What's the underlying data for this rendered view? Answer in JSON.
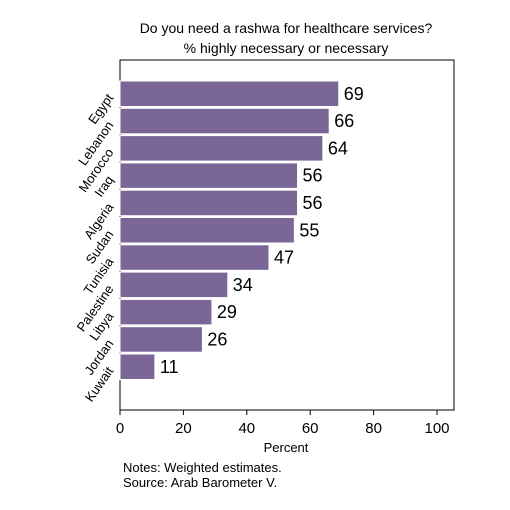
{
  "chart_data": {
    "type": "bar",
    "orientation": "horizontal",
    "title": "Do you need a rashwa for healthcare services?",
    "subtitle": "% highly necessary or necessary",
    "xlabel": "Percent",
    "ylabel": "",
    "categories": [
      "Egypt",
      "Lebanon",
      "Morocco",
      "Iraq",
      "Algeria",
      "Sudan",
      "Tunisia",
      "Palestine",
      "Libya",
      "Jordan",
      "Kuwait"
    ],
    "values": [
      69,
      66,
      64,
      56,
      56,
      55,
      47,
      34,
      29,
      26,
      11
    ],
    "value_labels": [
      "69",
      "66",
      "64",
      "56",
      "56",
      "55",
      "47",
      "34",
      "29",
      "26",
      "11"
    ],
    "xlim": [
      0,
      100
    ],
    "xticks": [
      0,
      20,
      40,
      60,
      80,
      100
    ],
    "xtick_labels": [
      "0",
      "20",
      "40",
      "60",
      "80",
      "100"
    ],
    "grid": false,
    "bar_color": "#7a6797",
    "bar_edge_color": "#ffffff"
  },
  "notes": {
    "line1": "Notes: Weighted estimates.",
    "line2": "Source: Arab Barometer V."
  }
}
